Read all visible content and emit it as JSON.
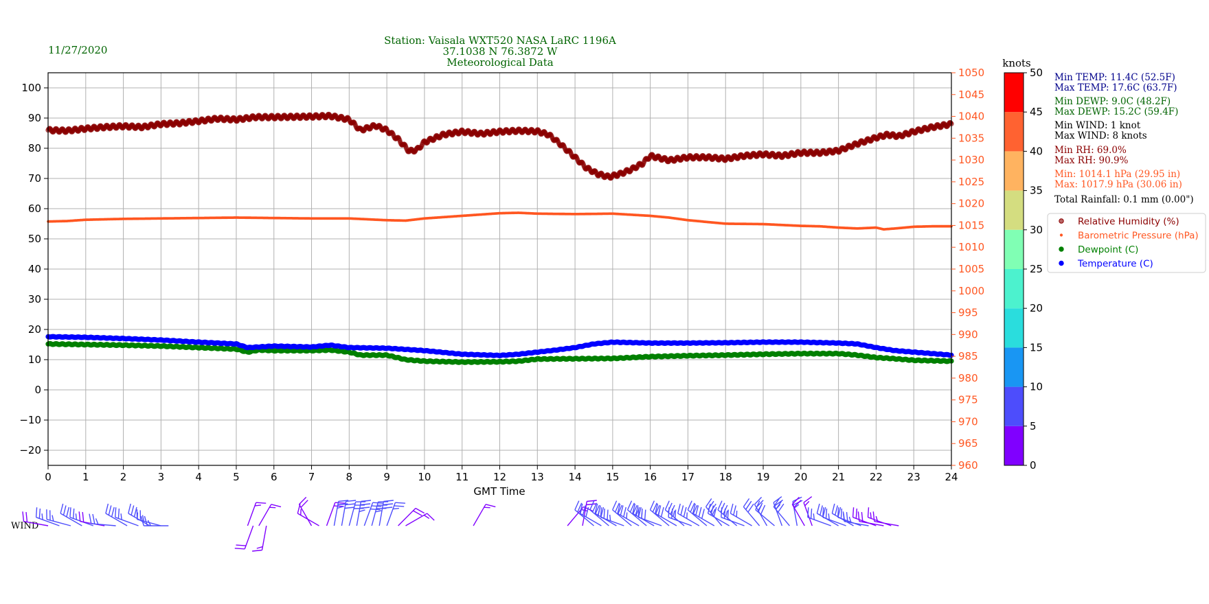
{
  "header": {
    "date": "11/27/2020",
    "title_lines": [
      "Station:  Vaisala WXT520  NASA LaRC 1196A",
      "37.1038 N 76.3872 W",
      "Meteorological Data"
    ]
  },
  "colors": {
    "temperature": "#0000ff",
    "dewpoint": "#008000",
    "humidity": "#8b0000",
    "pressure": "#ff5722",
    "grid": "#b0b0b0",
    "stats_temp": "#00008b",
    "stats_dewp": "#006400",
    "stats_wind": "#000000",
    "stats_rh": "#8b0000",
    "stats_press": "#ff5722",
    "barb": "#8000ff"
  },
  "stats": [
    {
      "key": "min_temp",
      "text": "Min TEMP: 11.4C (52.5F)",
      "color": "#00008b"
    },
    {
      "key": "max_temp",
      "text": "Max TEMP: 17.6C (63.7F)",
      "color": "#00008b"
    },
    {
      "key": "min_dewp",
      "text": "Min DEWP: 9.0C (48.2F)",
      "color": "#006400"
    },
    {
      "key": "max_dewp",
      "text": "Max DEWP: 15.2C (59.4F)",
      "color": "#006400"
    },
    {
      "key": "min_wind",
      "text": "Min WIND: 1 knot",
      "color": "#000000"
    },
    {
      "key": "max_wind",
      "text": "Max WIND: 8 knots",
      "color": "#000000"
    },
    {
      "key": "min_rh",
      "text": "Min RH: 69.0%",
      "color": "#8b0000"
    },
    {
      "key": "max_rh",
      "text": "Max RH: 90.9%",
      "color": "#8b0000"
    },
    {
      "key": "min_press",
      "text": "Min: 1014.1 hPa (29.95 in)",
      "color": "#ff5722"
    },
    {
      "key": "max_press",
      "text": "Max: 1017.9 hPa (30.06 in)",
      "color": "#ff5722"
    },
    {
      "key": "rain",
      "text": "Total Rainfall: 0.1 mm (0.00\")",
      "color": "#000000"
    }
  ],
  "legend": [
    {
      "label": "Relative Humidity (%)",
      "color": "#8b0000",
      "marker": "rh"
    },
    {
      "label": "Barometric Pressure (hPa)",
      "color": "#ff5722",
      "marker": "small"
    },
    {
      "label": "Dewpoint (C)",
      "color": "#008000",
      "marker": "dot"
    },
    {
      "label": "Temperature (C)",
      "color": "#0000ff",
      "marker": "dot"
    }
  ],
  "colorbar": {
    "title": "knots",
    "ticks": [
      "0",
      "5",
      "10",
      "15",
      "20",
      "25",
      "30",
      "35",
      "40",
      "45",
      "50"
    ],
    "bins": [
      {
        "from": 0,
        "to": 5,
        "color": "#8000ff"
      },
      {
        "from": 5,
        "to": 10,
        "color": "#4d4dfc"
      },
      {
        "from": 10,
        "to": 15,
        "color": "#1996f3"
      },
      {
        "from": 15,
        "to": 20,
        "color": "#2adddd"
      },
      {
        "from": 20,
        "to": 25,
        "color": "#4cf2ce"
      },
      {
        "from": 25,
        "to": 30,
        "color": "#80ffb4"
      },
      {
        "from": 30,
        "to": 35,
        "color": "#d4dd80"
      },
      {
        "from": 35,
        "to": 40,
        "color": "#ffb360"
      },
      {
        "from": 40,
        "to": 45,
        "color": "#ff6231"
      },
      {
        "from": 45,
        "to": 50,
        "color": "#ff0000"
      }
    ]
  },
  "wind": {
    "label": "WIND",
    "barbs": [
      [
        0.0,
        280,
        4
      ],
      [
        0.3,
        290,
        5
      ],
      [
        0.6,
        285,
        5
      ],
      [
        0.9,
        300,
        6
      ],
      [
        1.2,
        290,
        5
      ],
      [
        1.5,
        280,
        4
      ],
      [
        1.8,
        275,
        5
      ],
      [
        2.1,
        300,
        6
      ],
      [
        2.4,
        290,
        5
      ],
      [
        2.7,
        300,
        7
      ],
      [
        3.0,
        285,
        5
      ],
      [
        3.2,
        270,
        5
      ],
      [
        5.3,
        20,
        3
      ],
      [
        5.45,
        200,
        4
      ],
      [
        5.6,
        30,
        3
      ],
      [
        5.8,
        190,
        3
      ],
      [
        7.0,
        330,
        4
      ],
      [
        7.2,
        300,
        3
      ],
      [
        7.4,
        20,
        4
      ],
      [
        7.6,
        10,
        5
      ],
      [
        7.8,
        10,
        6
      ],
      [
        8.0,
        15,
        6
      ],
      [
        8.2,
        10,
        7
      ],
      [
        8.4,
        20,
        6
      ],
      [
        8.6,
        15,
        7
      ],
      [
        8.8,
        10,
        6
      ],
      [
        9.0,
        20,
        5
      ],
      [
        9.3,
        45,
        4
      ],
      [
        9.5,
        60,
        3
      ],
      [
        11.3,
        30,
        3
      ],
      [
        13.8,
        40,
        3
      ],
      [
        14.2,
        10,
        4
      ],
      [
        14.5,
        310,
        5
      ],
      [
        14.7,
        300,
        6
      ],
      [
        14.9,
        310,
        7
      ],
      [
        15.1,
        300,
        6
      ],
      [
        15.3,
        290,
        7
      ],
      [
        15.5,
        310,
        6
      ],
      [
        15.7,
        300,
        7
      ],
      [
        15.9,
        310,
        8
      ],
      [
        16.1,
        300,
        7
      ],
      [
        16.3,
        290,
        6
      ],
      [
        16.5,
        310,
        7
      ],
      [
        16.7,
        300,
        6
      ],
      [
        16.9,
        310,
        7
      ],
      [
        17.1,
        290,
        6
      ],
      [
        17.3,
        300,
        7
      ],
      [
        17.5,
        310,
        6
      ],
      [
        17.7,
        300,
        8
      ],
      [
        17.9,
        320,
        7
      ],
      [
        18.1,
        300,
        6
      ],
      [
        18.3,
        310,
        7
      ],
      [
        18.5,
        290,
        6
      ],
      [
        18.7,
        300,
        5
      ],
      [
        18.9,
        320,
        6
      ],
      [
        19.1,
        330,
        5
      ],
      [
        19.3,
        310,
        6
      ],
      [
        19.5,
        340,
        5
      ],
      [
        19.7,
        320,
        6
      ],
      [
        19.9,
        350,
        5
      ],
      [
        20.1,
        330,
        4
      ],
      [
        20.3,
        340,
        3
      ],
      [
        20.8,
        290,
        5
      ],
      [
        21.0,
        300,
        6
      ],
      [
        21.2,
        290,
        5
      ],
      [
        21.4,
        300,
        6
      ],
      [
        21.6,
        290,
        5
      ],
      [
        21.8,
        280,
        5
      ],
      [
        22.0,
        290,
        4
      ],
      [
        22.2,
        280,
        4
      ],
      [
        22.4,
        290,
        3
      ],
      [
        22.6,
        280,
        3
      ]
    ]
  },
  "chart_data": {
    "type": "scatter",
    "title": "Station:  Vaisala WXT520  NASA LaRC 1196A\n37.1038 N 76.3872 W\nMeteorological Data",
    "xlabel": "GMT Time",
    "xlim": [
      0,
      24
    ],
    "x_ticks": [
      "0",
      "1",
      "2",
      "3",
      "4",
      "5",
      "6",
      "7",
      "8",
      "9",
      "10",
      "11",
      "12",
      "13",
      "14",
      "15",
      "16",
      "17",
      "18",
      "19",
      "20",
      "21",
      "22",
      "23",
      "24"
    ],
    "ylim_left": [
      -25,
      105
    ],
    "y_ticks_left": [
      "−20",
      "−10",
      "0",
      "10",
      "20",
      "30",
      "40",
      "50",
      "60",
      "70",
      "80",
      "90",
      "100"
    ],
    "ylim_right": [
      960,
      1050
    ],
    "y_ticks_right": [
      "960",
      "965",
      "970",
      "975",
      "980",
      "985",
      "990",
      "995",
      "1000",
      "1005",
      "1010",
      "1015",
      "1020",
      "1025",
      "1030",
      "1035",
      "1040",
      "1045",
      "1050"
    ],
    "grid": true,
    "legend_position": "right",
    "series": [
      {
        "name": "Relative Humidity (%)",
        "axis": "left",
        "x": [
          0,
          0.5,
          1,
          1.5,
          2,
          2.5,
          3,
          3.5,
          4,
          4.5,
          5,
          5.5,
          6,
          6.5,
          7,
          7.5,
          8,
          8.3,
          8.7,
          9,
          9.3,
          9.6,
          9.8,
          10,
          10.5,
          11,
          11.5,
          12,
          12.5,
          13,
          13.3,
          13.6,
          14,
          14.3,
          14.6,
          14.9,
          15.2,
          15.5,
          15.8,
          16,
          16.5,
          17,
          17.5,
          18,
          18.5,
          19,
          19.5,
          20,
          20.5,
          21,
          21.5,
          22,
          22.3,
          22.6,
          23,
          23.5,
          24
        ],
        "values": [
          86,
          85.8,
          86.5,
          87,
          87.3,
          87,
          88,
          88.3,
          89,
          89.8,
          89.5,
          90.3,
          90.3,
          90.4,
          90.5,
          90.7,
          89.5,
          86,
          87.5,
          86,
          83,
          79,
          79.5,
          82,
          84.5,
          85.5,
          84.8,
          85.5,
          85.8,
          85.6,
          84.5,
          81.5,
          77,
          73.5,
          71.5,
          70.5,
          71.5,
          73,
          75,
          77.5,
          76,
          77,
          77,
          76.5,
          77.5,
          78,
          77.5,
          78.5,
          78.5,
          79.2,
          81.5,
          83.5,
          84.5,
          84,
          85.5,
          87,
          88
        ]
      },
      {
        "name": "Barometric Pressure (hPa)",
        "axis": "right",
        "x": [
          0,
          0.5,
          1,
          2,
          3,
          4,
          5,
          6,
          7,
          8,
          9,
          9.5,
          10,
          11,
          11.5,
          12,
          12.5,
          13,
          14,
          15,
          16,
          16.5,
          17,
          17.5,
          18,
          19,
          20,
          20.5,
          21,
          21.5,
          22,
          22.2,
          22.5,
          23,
          23.5,
          24
        ],
        "values": [
          1015.9,
          1016.0,
          1016.3,
          1016.5,
          1016.6,
          1016.7,
          1016.8,
          1016.7,
          1016.6,
          1016.6,
          1016.2,
          1016.1,
          1016.6,
          1017.2,
          1017.5,
          1017.8,
          1017.9,
          1017.7,
          1017.6,
          1017.7,
          1017.2,
          1016.8,
          1016.2,
          1015.8,
          1015.4,
          1015.3,
          1014.9,
          1014.8,
          1014.5,
          1014.3,
          1014.5,
          1014.1,
          1014.3,
          1014.7,
          1014.8,
          1014.8
        ]
      },
      {
        "name": "Dewpoint (C)",
        "axis": "left",
        "x": [
          0,
          1,
          2,
          3,
          4,
          5,
          5.3,
          5.6,
          6,
          7,
          7.5,
          8,
          8.3,
          9,
          9.5,
          10,
          11,
          12,
          12.5,
          13,
          14,
          15,
          16,
          17,
          18,
          19,
          20,
          21,
          21.5,
          22,
          22.5,
          23,
          24
        ],
        "values": [
          15.2,
          15,
          14.8,
          14.5,
          14,
          13.5,
          12.5,
          13.2,
          13,
          13,
          13.2,
          12.5,
          11.5,
          11.5,
          10,
          9.5,
          9.2,
          9.3,
          9.5,
          10.2,
          10.3,
          10.4,
          11,
          11.3,
          11.5,
          11.8,
          12,
          12,
          11.5,
          10.7,
          10.3,
          9.8,
          9.5
        ]
      },
      {
        "name": "Temperature (C)",
        "axis": "left",
        "x": [
          0,
          1,
          2,
          3,
          4,
          5,
          5.3,
          6,
          7,
          7.5,
          8,
          9,
          10,
          11,
          12,
          12.5,
          13,
          13.5,
          14,
          14.5,
          15,
          16,
          17,
          18,
          19,
          20,
          21,
          21.5,
          22,
          22.5,
          23,
          24
        ],
        "values": [
          17.6,
          17.4,
          17,
          16.5,
          15.8,
          15.2,
          14,
          14.5,
          14.2,
          14.8,
          14,
          13.8,
          13,
          11.8,
          11.4,
          11.8,
          12.5,
          13.2,
          14,
          15.2,
          15.8,
          15.5,
          15.5,
          15.6,
          15.8,
          15.8,
          15.5,
          15.2,
          14,
          13,
          12.5,
          11.5
        ]
      }
    ]
  }
}
